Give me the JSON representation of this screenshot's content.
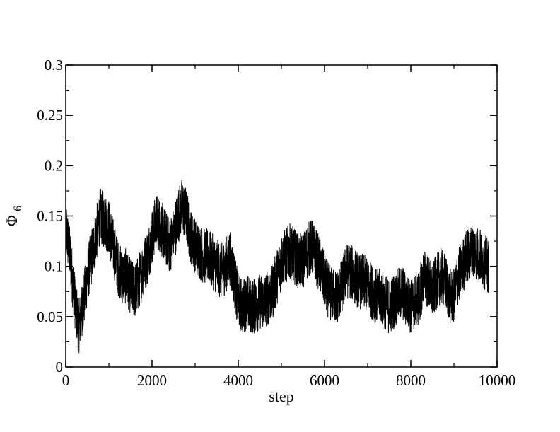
{
  "chart_data": {
    "type": "line",
    "title": "",
    "xlabel": "step",
    "ylabel": "Φ",
    "ylabel_subscript": "6",
    "xlim": [
      0,
      10000
    ],
    "ylim": [
      0,
      0.3
    ],
    "x_ticks": [
      0,
      2000,
      4000,
      6000,
      8000,
      10000
    ],
    "x_tick_labels": [
      "0",
      "2000",
      "4000",
      "6000",
      "8000",
      "10000"
    ],
    "y_ticks": [
      0,
      0.05,
      0.1,
      0.15,
      0.2,
      0.25,
      0.3
    ],
    "y_tick_labels": [
      "0",
      "0.05",
      "0.1",
      "0.15",
      "0.2",
      "0.25",
      "0.3"
    ],
    "grid": false,
    "legend": "none",
    "line_color": "#000000",
    "noise_amplitude": 0.028,
    "series": [
      {
        "x": [
          0,
          100,
          200,
          300,
          400,
          500,
          600,
          700,
          800,
          900,
          1000,
          1100,
          1200,
          1300,
          1400,
          1500,
          1600,
          1700,
          1800,
          1900,
          2000,
          2100,
          2200,
          2300,
          2400,
          2500,
          2600,
          2700,
          2800,
          2900,
          3000,
          3100,
          3200,
          3300,
          3400,
          3500,
          3600,
          3700,
          3800,
          3900,
          4000,
          4100,
          4200,
          4300,
          4400,
          4500,
          4600,
          4700,
          4800,
          4900,
          5000,
          5100,
          5200,
          5300,
          5400,
          5500,
          5600,
          5700,
          5800,
          5900,
          6000,
          6100,
          6200,
          6300,
          6400,
          6500,
          6600,
          6700,
          6800,
          6900,
          7000,
          7100,
          7200,
          7300,
          7400,
          7500,
          7600,
          7700,
          7800,
          7900,
          8000,
          8100,
          8200,
          8300,
          8400,
          8500,
          8600,
          8700,
          8800,
          8900,
          9000,
          9100,
          9200,
          9300,
          9400,
          9500,
          9600,
          9700,
          9800
        ],
        "y": [
          0.14,
          0.11,
          0.07,
          0.04,
          0.06,
          0.09,
          0.11,
          0.13,
          0.15,
          0.145,
          0.14,
          0.12,
          0.1,
          0.09,
          0.09,
          0.08,
          0.075,
          0.085,
          0.1,
          0.11,
          0.13,
          0.145,
          0.14,
          0.13,
          0.12,
          0.13,
          0.15,
          0.16,
          0.15,
          0.13,
          0.12,
          0.115,
          0.11,
          0.11,
          0.105,
          0.1,
          0.095,
          0.1,
          0.11,
          0.09,
          0.065,
          0.06,
          0.065,
          0.06,
          0.06,
          0.065,
          0.065,
          0.07,
          0.075,
          0.09,
          0.105,
          0.11,
          0.115,
          0.11,
          0.105,
          0.105,
          0.115,
          0.12,
          0.11,
          0.1,
          0.085,
          0.075,
          0.07,
          0.07,
          0.08,
          0.095,
          0.095,
          0.09,
          0.085,
          0.085,
          0.08,
          0.075,
          0.07,
          0.07,
          0.065,
          0.06,
          0.065,
          0.07,
          0.075,
          0.065,
          0.06,
          0.065,
          0.07,
          0.09,
          0.085,
          0.075,
          0.085,
          0.09,
          0.085,
          0.07,
          0.07,
          0.09,
          0.1,
          0.11,
          0.115,
          0.115,
          0.11,
          0.105,
          0.1
        ]
      }
    ]
  }
}
